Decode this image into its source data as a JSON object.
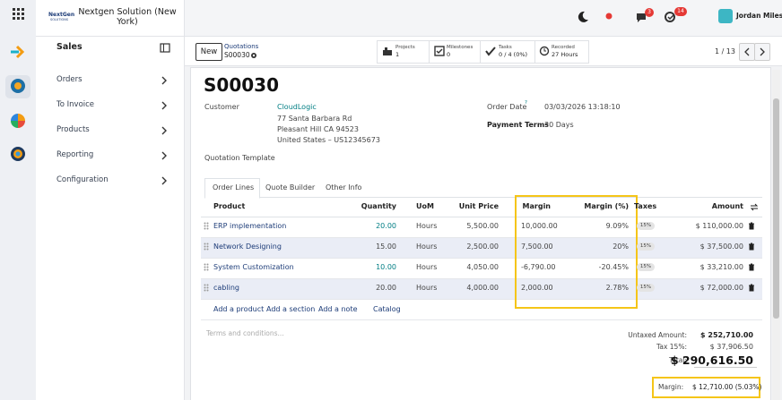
{
  "sidebar": {
    "logo": "NextGen",
    "logo_sub": "SOLUTIONS",
    "company": "Nextgen Solution (New York)",
    "app": "Sales",
    "menu": [
      "Orders",
      "To Invoice",
      "Products",
      "Reporting",
      "Configuration"
    ]
  },
  "topbar": {
    "chat_badge": "3",
    "activity_badge": "14",
    "user": "Jordan Miles"
  },
  "control_panel": {
    "new_button": "New",
    "breadcrumb": "Quotations",
    "record": "S00030",
    "smart_buttons": [
      {
        "label": "Projects",
        "value": "1"
      },
      {
        "label": "Milestones",
        "value": "0"
      },
      {
        "label": "Tasks",
        "value": "0 / 4 (0%)"
      },
      {
        "label": "Recorded",
        "value": "27 Hours"
      }
    ],
    "pager": "1 / 13"
  },
  "form": {
    "title": "S00030",
    "customer_label": "Customer",
    "customer": "CloudLogic",
    "address": [
      "77 Santa Barbara Rd",
      "Pleasant Hill CA 94523",
      "United States – US12345673"
    ],
    "order_date_label": "Order Date",
    "order_date_help": "?",
    "order_date": "03/03/2026 13:18:10",
    "payment_terms_label": "Payment Terms",
    "payment_terms": "30 Days",
    "quotation_template_label": "Quotation Template"
  },
  "order_lines": {
    "tabs": [
      "Order Lines",
      "Quote Builder",
      "Other Info"
    ],
    "columns": [
      "Product",
      "Quantity",
      "UoM",
      "Unit Price",
      "Margin",
      "Margin (%)",
      "Taxes",
      "Amount"
    ],
    "rows": [
      [
        "ERP implementation",
        "20.00",
        "Hours",
        "5,500.00",
        "10,000.00",
        "9.09%",
        "15%",
        "$ 110,000.00"
      ],
      [
        "Network Designing",
        "15.00",
        "Hours",
        "2,500.00",
        "7,500.00",
        "20%",
        "15%",
        "$ 37,500.00"
      ],
      [
        "System Customization",
        "10.00",
        "Hours",
        "4,050.00",
        "-6,790.00",
        "-20.45%",
        "15%",
        "$ 33,210.00"
      ],
      [
        "cabling",
        "20.00",
        "Hours",
        "4,000.00",
        "2,000.00",
        "2.78%",
        "15%",
        "$ 72,000.00"
      ]
    ],
    "actions": [
      "Add a product",
      "Add a section",
      "Add a note",
      "Catalog"
    ],
    "terms_placeholder": "Terms and conditions..."
  },
  "totals": {
    "untaxed_label": "Untaxed Amount:",
    "untaxed": "$ 252,710.00",
    "tax_label": "Tax 15%:",
    "tax": "$ 37,906.50",
    "total_label": "Total:",
    "total": "$ 290,616.50",
    "margin_label": "Margin:",
    "margin": "$ 12,710.00 (5.03%)"
  }
}
